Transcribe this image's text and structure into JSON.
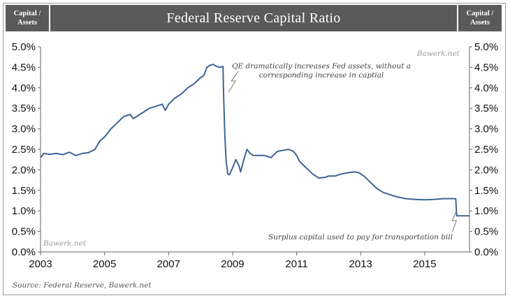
{
  "header": {
    "left_label": "Capital /\nAssets",
    "title": "Federal Reserve Capital Ratio",
    "right_label": "Capital /\nAssets"
  },
  "watermarks": {
    "top_right": "Bawerk.net",
    "bottom_left": "Bawerk.net"
  },
  "source": "Source: Federal Reserve, Bawerk.net",
  "chart_data": {
    "type": "line",
    "title": "Federal Reserve Capital Ratio",
    "xlabel": "",
    "ylabel": "Capital / Assets",
    "xlim": [
      2003,
      2016.4
    ],
    "ylim": [
      0,
      5
    ],
    "y_ticks": [
      "0.0%",
      "0.5%",
      "1.0%",
      "1.5%",
      "2.0%",
      "2.5%",
      "3.0%",
      "3.5%",
      "4.0%",
      "4.5%",
      "5.0%"
    ],
    "x_ticks": [
      "2003",
      "2005",
      "2007",
      "2009",
      "2011",
      "2013",
      "2015"
    ],
    "grid": false,
    "line_color": "#3d6596",
    "series": [
      {
        "x": [
          2003.0,
          2003.1,
          2003.3,
          2003.5,
          2003.7,
          2003.9,
          2004.1,
          2004.3,
          2004.5,
          2004.7,
          2004.85,
          2005.0,
          2005.2,
          2005.4,
          2005.6,
          2005.8,
          2005.9,
          2006.0,
          2006.2,
          2006.4,
          2006.6,
          2006.8,
          2006.9,
          2007.0,
          2007.2,
          2007.4,
          2007.6,
          2007.8,
          2008.0,
          2008.1,
          2008.2,
          2008.3,
          2008.4,
          2008.5,
          2008.6,
          2008.7,
          2008.72,
          2008.76,
          2008.8,
          2008.85,
          2008.9,
          2009.0,
          2009.1,
          2009.2,
          2009.25,
          2009.35,
          2009.45,
          2009.55,
          2009.65,
          2009.8,
          2010.0,
          2010.2,
          2010.4,
          2010.6,
          2010.75,
          2010.9,
          2011.0,
          2011.1,
          2011.3,
          2011.5,
          2011.7,
          2011.9,
          2012.0,
          2012.2,
          2012.4,
          2012.6,
          2012.8,
          2012.95,
          2013.1,
          2013.3,
          2013.5,
          2013.7,
          2013.9,
          2014.1,
          2014.4,
          2014.7,
          2015.0,
          2015.3,
          2015.6,
          2015.9,
          2015.97,
          2016.0,
          2016.4
        ],
        "values": [
          2.3,
          2.4,
          2.38,
          2.4,
          2.37,
          2.43,
          2.35,
          2.4,
          2.42,
          2.5,
          2.7,
          2.8,
          3.0,
          3.15,
          3.3,
          3.35,
          3.25,
          3.3,
          3.4,
          3.5,
          3.55,
          3.6,
          3.45,
          3.6,
          3.75,
          3.85,
          4.0,
          4.1,
          4.25,
          4.3,
          4.5,
          4.55,
          4.57,
          4.52,
          4.5,
          4.52,
          3.8,
          2.8,
          2.2,
          1.9,
          1.88,
          2.05,
          2.25,
          2.1,
          1.95,
          2.25,
          2.5,
          2.4,
          2.35,
          2.35,
          2.35,
          2.3,
          2.45,
          2.48,
          2.5,
          2.45,
          2.35,
          2.2,
          2.05,
          1.9,
          1.8,
          1.82,
          1.85,
          1.85,
          1.9,
          1.93,
          1.95,
          1.93,
          1.85,
          1.7,
          1.55,
          1.45,
          1.4,
          1.35,
          1.3,
          1.28,
          1.27,
          1.28,
          1.3,
          1.3,
          1.3,
          0.88,
          0.88
        ]
      }
    ],
    "annotations": [
      {
        "text": "QE dramatically increases Fed assets, without a\ncorresponding increase in captial",
        "at": [
          2008.7,
          4.2
        ]
      },
      {
        "text": "Surplus capital used to pay for transportation bill",
        "at": [
          2015.95,
          1.0
        ]
      }
    ]
  }
}
